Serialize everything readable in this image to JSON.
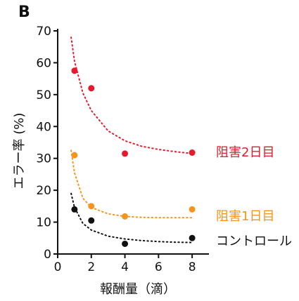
{
  "chart_data": {
    "type": "scatter",
    "panel_label": "B",
    "xlabel": "報酬量（滴）",
    "ylabel": "エラー率 (%)",
    "xlim": [
      0,
      9
    ],
    "ylim": [
      0,
      70
    ],
    "x_ticks": [
      0,
      2,
      4,
      6,
      8
    ],
    "y_ticks": [
      0,
      10,
      20,
      30,
      40,
      50,
      60,
      70
    ],
    "grid": false,
    "series": [
      {
        "name": "阻害2日目",
        "color": "#e8192c",
        "x": [
          1,
          2,
          4,
          8
        ],
        "y": [
          57.5,
          52,
          31.5,
          31.8
        ],
        "fit": {
          "x": [
            0.8,
            1,
            1.5,
            2,
            3,
            4,
            5,
            6,
            7,
            8
          ],
          "y": [
            68,
            60.5,
            50.5,
            45,
            38.6,
            35.5,
            33.8,
            32.8,
            32.1,
            31.5
          ]
        }
      },
      {
        "name": "阻害1日目",
        "color": "#f7941d",
        "x": [
          1,
          2,
          4,
          8
        ],
        "y": [
          31,
          15,
          11.8,
          14
        ],
        "fit": {
          "x": [
            0.8,
            1,
            1.5,
            2,
            3,
            4,
            5,
            6,
            7,
            8
          ],
          "y": [
            32.5,
            25.5,
            17.5,
            14.6,
            12.6,
            11.8,
            11.5,
            11.4,
            11.4,
            11.4
          ]
        }
      },
      {
        "name": "コントロール",
        "color": "#111111",
        "x": [
          1,
          2,
          4,
          8
        ],
        "y": [
          14,
          10.5,
          3.2,
          5
        ],
        "fit": {
          "x": [
            0.8,
            1,
            1.5,
            2,
            3,
            4,
            5,
            6,
            7,
            8
          ],
          "y": [
            19,
            14.6,
            9.6,
            7.5,
            5.6,
            4.7,
            4.2,
            3.9,
            3.7,
            3.6
          ]
        }
      }
    ]
  }
}
